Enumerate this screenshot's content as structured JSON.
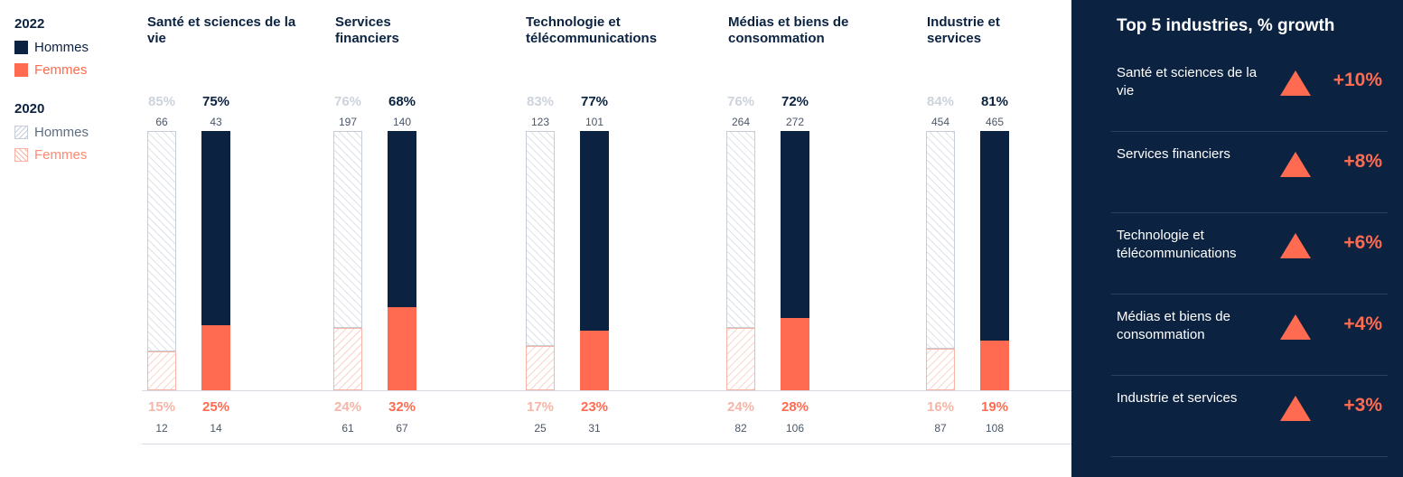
{
  "legend": {
    "year_2022": "2022",
    "year_2020": "2020",
    "men_label": "Hommes",
    "women_label": "Femmes"
  },
  "colors": {
    "navy": "#0b2240",
    "orange": "#ff6b50",
    "hatch_men": "#c6cdd7",
    "hatch_women": "#f6b5a6"
  },
  "chart_data": {
    "type": "bar",
    "stacked": true,
    "normalized_percent": true,
    "categories": [
      "Santé et sciences de la vie",
      "Services financiers",
      "Technologie et télécommunications",
      "Médias et biens de consommation",
      "Industrie et services"
    ],
    "years": [
      "2020",
      "2022"
    ],
    "groups": [
      {
        "category": "Santé et sciences de la vie",
        "y2020": {
          "men_pct": "85%",
          "men_count": "66",
          "women_pct": "15%",
          "women_count": "12",
          "women_share": 0.15
        },
        "y2022": {
          "men_pct": "75%",
          "men_count": "43",
          "women_pct": "25%",
          "women_count": "14",
          "women_share": 0.25
        }
      },
      {
        "category": "Services financiers",
        "y2020": {
          "men_pct": "76%",
          "men_count": "197",
          "women_pct": "24%",
          "women_count": "61",
          "women_share": 0.24
        },
        "y2022": {
          "men_pct": "68%",
          "men_count": "140",
          "women_pct": "32%",
          "women_count": "67",
          "women_share": 0.32
        }
      },
      {
        "category": "Technologie et télécommunications",
        "y2020": {
          "men_pct": "83%",
          "men_count": "123",
          "women_pct": "17%",
          "women_count": "25",
          "women_share": 0.17
        },
        "y2022": {
          "men_pct": "77%",
          "men_count": "101",
          "women_pct": "23%",
          "women_count": "31",
          "women_share": 0.23
        }
      },
      {
        "category": "Médias et biens de consommation",
        "y2020": {
          "men_pct": "76%",
          "men_count": "264",
          "women_pct": "24%",
          "women_count": "82",
          "women_share": 0.24
        },
        "y2022": {
          "men_pct": "72%",
          "men_count": "272",
          "women_pct": "28%",
          "women_count": "106",
          "women_share": 0.28
        }
      },
      {
        "category": "Industrie et services",
        "y2020": {
          "men_pct": "84%",
          "men_count": "454",
          "women_pct": "16%",
          "women_count": "87",
          "women_share": 0.16
        },
        "y2022": {
          "men_pct": "81%",
          "men_count": "465",
          "women_pct": "19%",
          "women_count": "108",
          "women_share": 0.19
        }
      }
    ]
  },
  "panel": {
    "title": "Top 5 industries, % growth",
    "rows": [
      {
        "label": "Santé et sciences de la vie",
        "value": "+10%"
      },
      {
        "label": "Services financiers",
        "value": "+8%"
      },
      {
        "label": "Technologie et télécommunications",
        "value": "+6%"
      },
      {
        "label": "Médias et biens de consommation",
        "value": "+4%"
      },
      {
        "label": "Industrie et services",
        "value": "+3%"
      }
    ]
  }
}
